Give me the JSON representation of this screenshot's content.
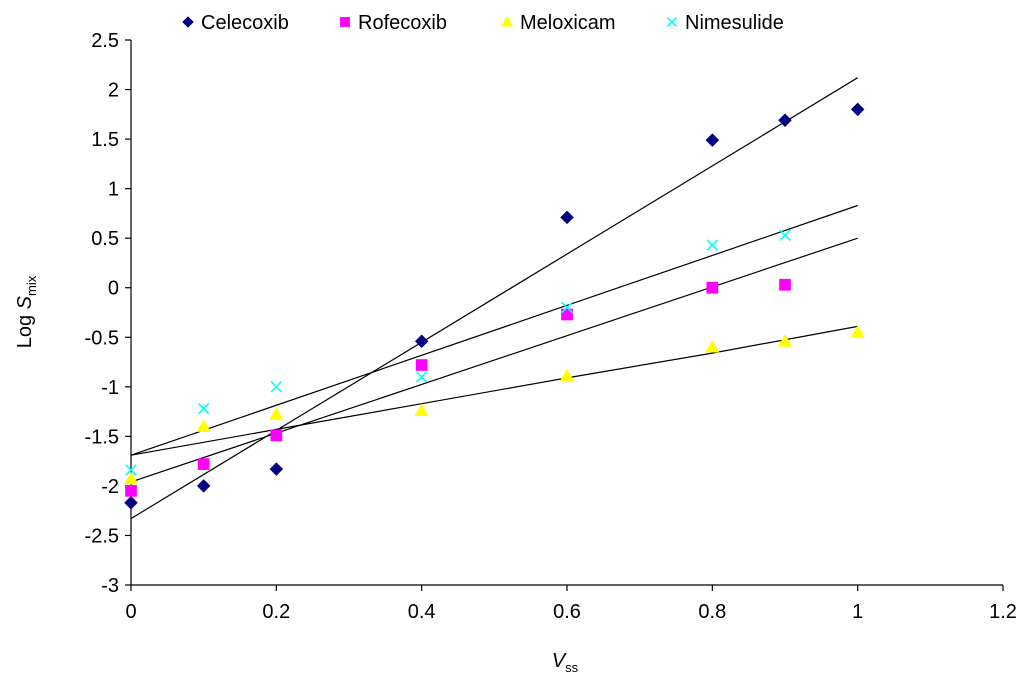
{
  "chart_data": {
    "type": "scatter",
    "xlabel": "V",
    "xlabel_sub": "ss",
    "ylabel": "Log ",
    "ylabel_var": "S",
    "ylabel_sub": "mix",
    "xlim": [
      0,
      1.2
    ],
    "ylim": [
      -3,
      2.5
    ],
    "xticks": [
      0,
      0.2,
      0.4,
      0.6,
      0.8,
      1,
      1.2
    ],
    "xtick_labels": [
      "0",
      "0.2",
      "0.4",
      "0.6",
      "0.8",
      "1",
      "1.2"
    ],
    "yticks": [
      -3,
      -2.5,
      -2,
      -1.5,
      -1,
      -0.5,
      0,
      0.5,
      1,
      1.5,
      2,
      2.5
    ],
    "ytick_labels": [
      "-3",
      "-2.5",
      "-2",
      "-1.5",
      "-1",
      "-0.5",
      "0",
      "0.5",
      "1",
      "1.5",
      "2",
      "2.5"
    ],
    "grid": false,
    "legend_position": "top",
    "series": [
      {
        "name": "Celecoxib",
        "marker": "diamond",
        "color": "#000080",
        "x": [
          0,
          0.1,
          0.2,
          0.4,
          0.6,
          0.8,
          0.9,
          1.0
        ],
        "y": [
          -2.17,
          -2.0,
          -1.83,
          -0.54,
          0.71,
          1.49,
          1.69,
          1.8
        ],
        "trend": [
          [
            0,
            -2.33
          ],
          [
            1.0,
            2.12
          ]
        ]
      },
      {
        "name": "Rofecoxib",
        "marker": "square",
        "color": "#ff00ff",
        "x": [
          0,
          0.1,
          0.2,
          0.4,
          0.6,
          0.8,
          0.9
        ],
        "y": [
          -2.05,
          -1.78,
          -1.49,
          -0.78,
          -0.27,
          0.0,
          0.03
        ],
        "trend": [
          [
            0,
            -1.96
          ],
          [
            1.0,
            0.5
          ]
        ]
      },
      {
        "name": "Meloxicam",
        "marker": "triangle",
        "color": "#ffff00",
        "x": [
          0,
          0.1,
          0.2,
          0.4,
          0.6,
          0.8,
          0.9,
          1.0
        ],
        "y": [
          -1.93,
          -1.4,
          -1.28,
          -1.24,
          -0.89,
          -0.6,
          -0.54,
          -0.45
        ],
        "trend": [
          [
            0,
            -1.69
          ],
          [
            0.2,
            -1.43
          ],
          [
            0.4,
            -1.17
          ],
          [
            0.6,
            -0.91
          ],
          [
            0.8,
            -0.66
          ],
          [
            1.0,
            -0.39
          ]
        ]
      },
      {
        "name": "Nimesulide",
        "marker": "x",
        "color": "#00ffff",
        "x": [
          0,
          0.1,
          0.2,
          0.4,
          0.6,
          0.8,
          0.9
        ],
        "y": [
          -1.84,
          -1.22,
          -1.0,
          -0.9,
          -0.2,
          0.43,
          0.53
        ],
        "trend": [
          [
            0,
            -1.69
          ],
          [
            1.0,
            0.83
          ]
        ]
      }
    ]
  }
}
